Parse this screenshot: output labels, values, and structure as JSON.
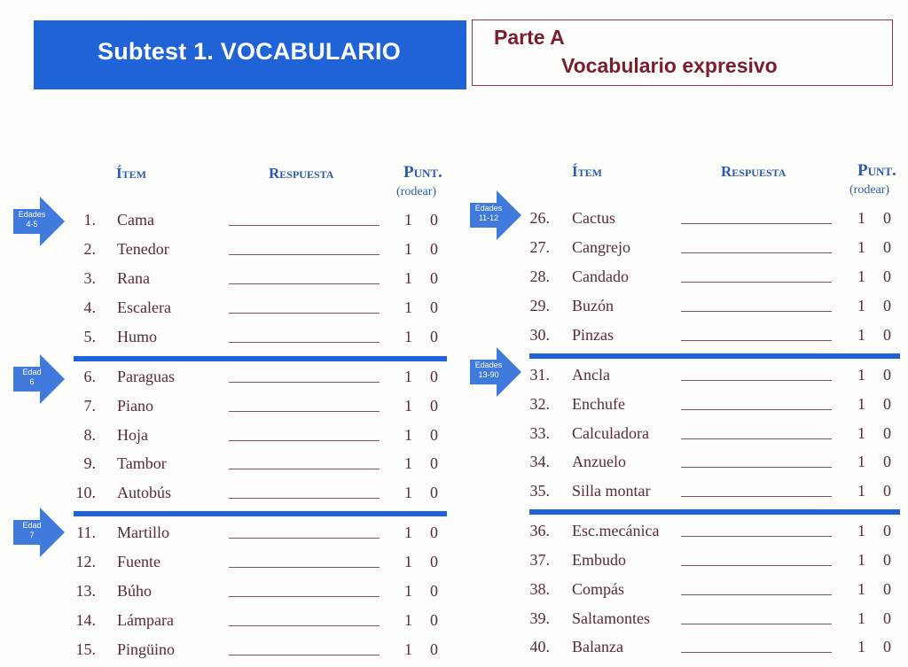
{
  "header": {
    "title": "Subtest 1. VOCABULARIO",
    "part": "Parte A",
    "part_subtitle": "Vocabulario expresivo"
  },
  "columns_header": {
    "item": "Ítem",
    "response": "Respuesta",
    "score": "Punt.",
    "score_note": "(rodear)"
  },
  "colors": {
    "accent_blue": "#1f63d6",
    "item_text": "#5a2a35",
    "part_text": "#7a1d2c"
  },
  "age_markers": [
    {
      "label": "Edades 4-5",
      "line1": "Edades",
      "line2": "4-5",
      "starts_at": 1
    },
    {
      "label": "Edad 6",
      "line1": "Edad",
      "line2": "6",
      "starts_at": 6
    },
    {
      "label": "Edad 7",
      "line1": "Edad",
      "line2": "7",
      "starts_at": 11
    },
    {
      "label": "Edades 11-12",
      "line1": "Edades",
      "line2": "11-12",
      "starts_at": 26
    },
    {
      "label": "Edades 13-90",
      "line1": "Edades",
      "line2": "13-90",
      "starts_at": 31
    }
  ],
  "left_items": [
    {
      "num": "1.",
      "word": "Cama",
      "s1": "1",
      "s0": "0"
    },
    {
      "num": "2.",
      "word": "Tenedor",
      "s1": "1",
      "s0": "0"
    },
    {
      "num": "3.",
      "word": "Rana",
      "s1": "1",
      "s0": "0"
    },
    {
      "num": "4.",
      "word": "Escalera",
      "s1": "1",
      "s0": "0"
    },
    {
      "num": "5.",
      "word": "Humo",
      "s1": "1",
      "s0": "0"
    },
    {
      "num": "6.",
      "word": "Paraguas",
      "s1": "1",
      "s0": "0"
    },
    {
      "num": "7.",
      "word": "Piano",
      "s1": "1",
      "s0": "0"
    },
    {
      "num": "8.",
      "word": "Hoja",
      "s1": "1",
      "s0": "0"
    },
    {
      "num": "9.",
      "word": "Tambor",
      "s1": "1",
      "s0": "0"
    },
    {
      "num": "10.",
      "word": "Autobús",
      "s1": "1",
      "s0": "0"
    },
    {
      "num": "11.",
      "word": "Martillo",
      "s1": "1",
      "s0": "0"
    },
    {
      "num": "12.",
      "word": "Fuente",
      "s1": "1",
      "s0": "0"
    },
    {
      "num": "13.",
      "word": "Búho",
      "s1": "1",
      "s0": "0"
    },
    {
      "num": "14.",
      "word": "Lámpara",
      "s1": "1",
      "s0": "0"
    },
    {
      "num": "15.",
      "word": "Pingüino",
      "s1": "1",
      "s0": "0"
    }
  ],
  "right_items": [
    {
      "num": "26.",
      "word": "Cactus",
      "s1": "1",
      "s0": "0"
    },
    {
      "num": "27.",
      "word": "Cangrejo",
      "s1": "1",
      "s0": "0"
    },
    {
      "num": "28.",
      "word": "Candado",
      "s1": "1",
      "s0": "0"
    },
    {
      "num": "29.",
      "word": "Buzón",
      "s1": "1",
      "s0": "0"
    },
    {
      "num": "30.",
      "word": "Pinzas",
      "s1": "1",
      "s0": "0"
    },
    {
      "num": "31.",
      "word": "Ancla",
      "s1": "1",
      "s0": "0"
    },
    {
      "num": "32.",
      "word": "Enchufe",
      "s1": "1",
      "s0": "0"
    },
    {
      "num": "33.",
      "word": "Calculadora",
      "s1": "1",
      "s0": "0"
    },
    {
      "num": "34.",
      "word": "Anzuelo",
      "s1": "1",
      "s0": "0"
    },
    {
      "num": "35.",
      "word": "Silla montar",
      "s1": "1",
      "s0": "0"
    },
    {
      "num": "36.",
      "word": "Esc.mecánica",
      "s1": "1",
      "s0": "0"
    },
    {
      "num": "37.",
      "word": "Embudo",
      "s1": "1",
      "s0": "0"
    },
    {
      "num": "38.",
      "word": "Compás",
      "s1": "1",
      "s0": "0"
    },
    {
      "num": "39.",
      "word": "Saltamontes",
      "s1": "1",
      "s0": "0"
    },
    {
      "num": "40.",
      "word": "Balanza",
      "s1": "1",
      "s0": "0"
    }
  ]
}
